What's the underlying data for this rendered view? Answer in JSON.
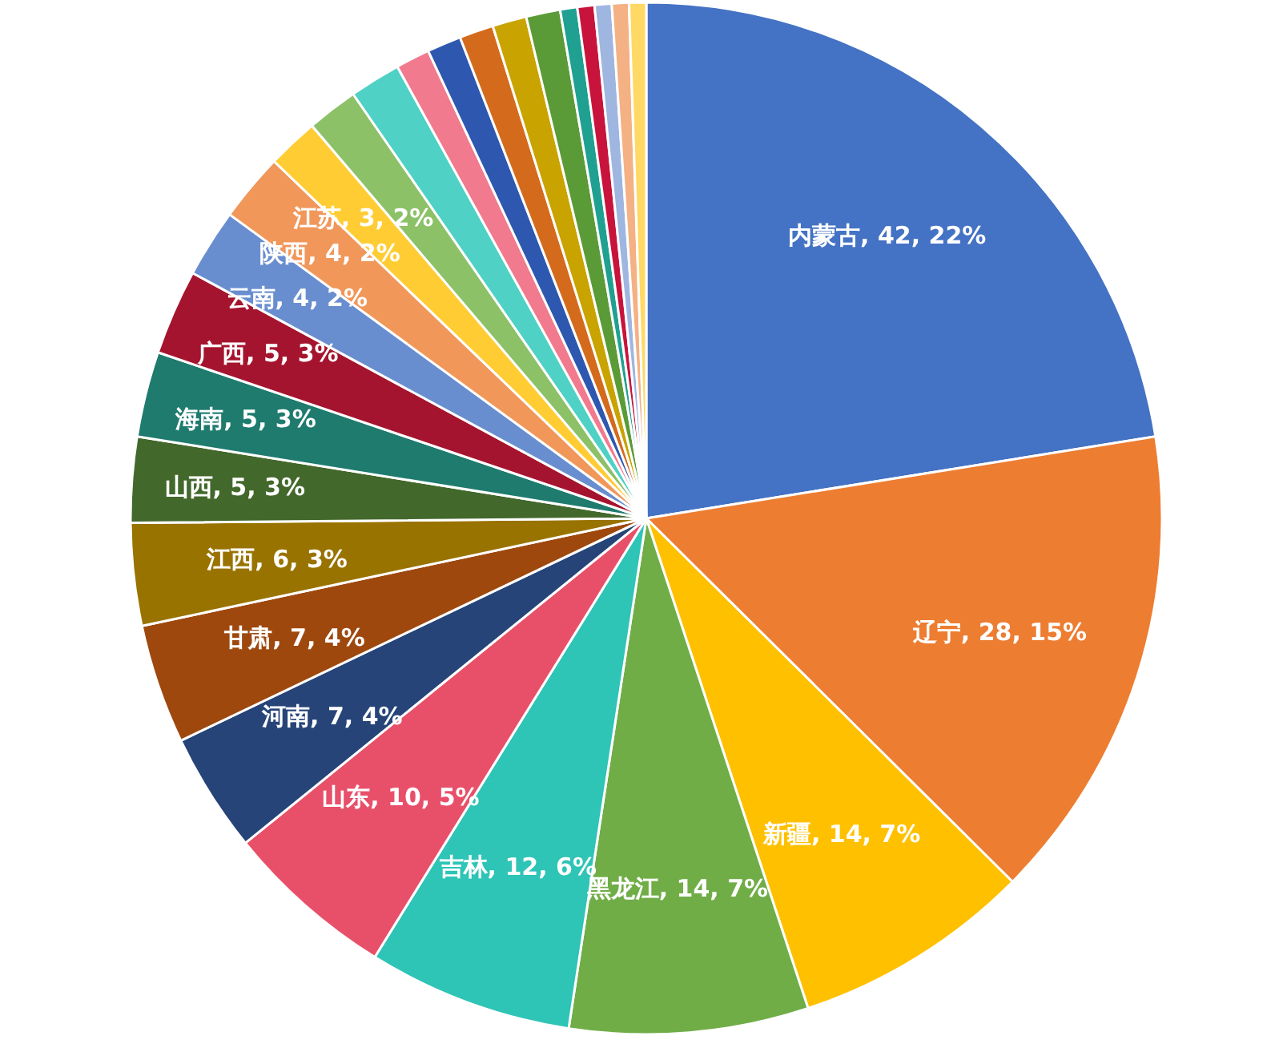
{
  "chart_data": {
    "type": "pie",
    "categories": [
      "内蒙古",
      "辽宁",
      "新疆",
      "黑龙江",
      "吉林",
      "山东",
      "河南",
      "甘肃",
      "江西",
      "山西",
      "海南",
      "广西",
      "云南",
      "陕西",
      "江苏",
      null,
      null,
      null,
      null,
      null,
      null,
      null,
      null,
      null,
      null,
      null,
      null
    ],
    "values": [
      42,
      28,
      14,
      14,
      12,
      10,
      7,
      7,
      6,
      5,
      5,
      5,
      4,
      4,
      3,
      3,
      3,
      2,
      2,
      2,
      2,
      2,
      1,
      1,
      1,
      1,
      1
    ],
    "value_labels": [
      "42, 22%",
      "28, 15%",
      "14, 7%",
      "14, 7%",
      "12, 6%",
      "10, 5%",
      "7, 4%",
      "7, 4%",
      "6, 3%",
      "5, 3%",
      "5, 3%",
      "5, 3%",
      "4, 2%",
      "4, 2%",
      "3, 2%",
      null,
      null,
      null,
      null,
      null,
      null,
      null,
      null,
      null,
      null,
      null,
      null
    ],
    "colors": [
      "#4472c4",
      "#ed7d31",
      "#ffc000",
      "#70ad47",
      "#2ec4b6",
      "#e8506a",
      "#264478",
      "#9e480e",
      "#997300",
      "#43682b",
      "#1e7b6e",
      "#a5142e",
      "#698ed0",
      "#f1975a",
      "#ffcd33",
      "#8cc168",
      "#4fd1c5",
      "#f27a8e",
      "#2e58b0",
      "#d46b1c",
      "#c9a300",
      "#5b9b37",
      "#20a090",
      "#c8143c",
      "#9fb6e0",
      "#f4b183",
      "#ffd966"
    ]
  }
}
